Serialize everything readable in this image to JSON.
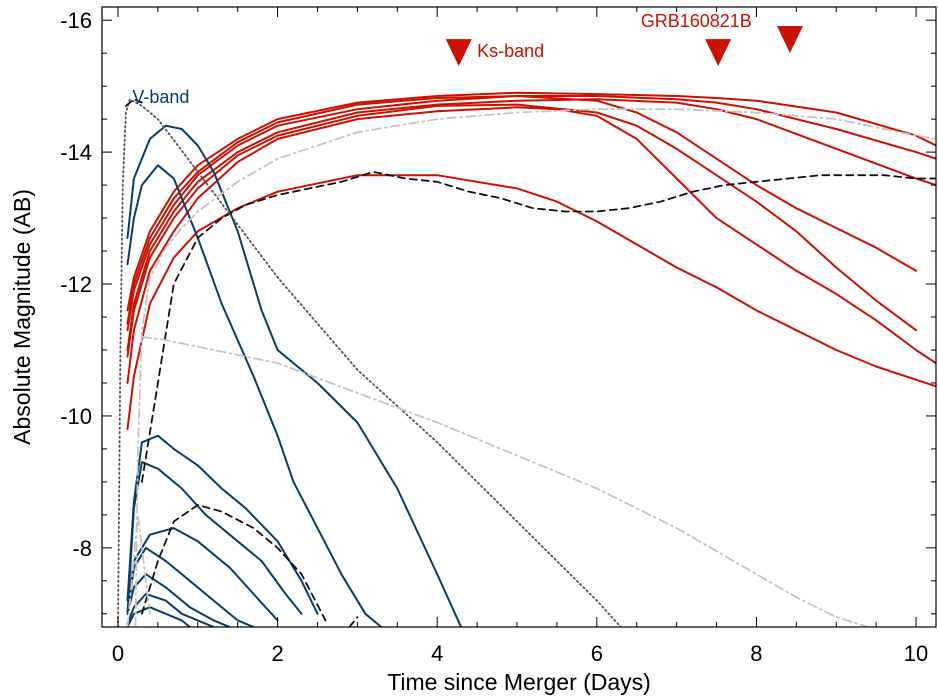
{
  "chart_data": {
    "type": "line",
    "xlabel": "Time since Merger (Days)",
    "ylabel": "Absolute Magnitude (AB)",
    "xlim": [
      -0.2,
      10.25
    ],
    "ylim": [
      -6.8,
      -16.2
    ],
    "y_axis_inverted": true,
    "xticks": [
      0,
      2,
      4,
      6,
      8,
      10
    ],
    "xtick_labels": [
      "0",
      "2",
      "4",
      "6",
      "8",
      "10"
    ],
    "yticks": [
      -16,
      -14,
      -12,
      -10,
      -8
    ],
    "ytick_labels": [
      "-16",
      "-14",
      "-12",
      "-10",
      "-8"
    ],
    "grid": false,
    "colors": {
      "ks": "#cc1100",
      "v": "#0a3d66",
      "model_dash": "#111111",
      "dotted": "#555555",
      "dashdot": "#c4c4c4"
    },
    "annotations": [
      {
        "text": "V-band",
        "x": 0.18,
        "y": -14.85,
        "color": "#0a3d66"
      },
      {
        "text": "Ks-band",
        "x": 4.5,
        "y": -15.55,
        "color": "#cc1100"
      },
      {
        "text": "GRB160821B",
        "x": 6.55,
        "y": -16.0,
        "color": "#cc1100"
      }
    ],
    "markers": [
      {
        "name": "Ks-band limit 1",
        "x": 4.27,
        "y": -15.5,
        "color": "#cc1100",
        "shape": "triangle-down"
      },
      {
        "name": "Ks-band limit 2",
        "x": 7.52,
        "y": -15.5,
        "color": "#cc1100",
        "shape": "triangle-down"
      },
      {
        "name": "Ks-band limit 3",
        "x": 8.42,
        "y": -15.7,
        "color": "#cc1100",
        "shape": "triangle-down"
      }
    ],
    "series": [
      {
        "group": "Ks-band",
        "style": "solid",
        "color": "#cc1100",
        "x": [
          0.12,
          0.2,
          0.4,
          0.7,
          1,
          1.5,
          2,
          3,
          4,
          5,
          6,
          7,
          7.5,
          8,
          9,
          10,
          10.25
        ],
        "y": [
          -11.6,
          -12.1,
          -12.8,
          -13.4,
          -13.8,
          -14.2,
          -14.5,
          -14.75,
          -14.85,
          -14.9,
          -14.88,
          -14.85,
          -14.82,
          -14.78,
          -14.6,
          -14.25,
          -14.1
        ]
      },
      {
        "group": "Ks-band",
        "style": "solid",
        "color": "#cc1100",
        "x": [
          0.12,
          0.2,
          0.4,
          0.7,
          1,
          1.5,
          2,
          3,
          4,
          5,
          6,
          7,
          7.5,
          8,
          9,
          10,
          10.25
        ],
        "y": [
          -11.3,
          -11.9,
          -12.6,
          -13.2,
          -13.65,
          -14.1,
          -14.4,
          -14.65,
          -14.78,
          -14.85,
          -14.85,
          -14.8,
          -14.75,
          -14.65,
          -14.35,
          -14.0,
          -13.9
        ]
      },
      {
        "group": "Ks-band",
        "style": "solid",
        "color": "#cc1100",
        "x": [
          0.12,
          0.2,
          0.4,
          0.7,
          1,
          1.5,
          2,
          3,
          4,
          5,
          6,
          7,
          7.5,
          8,
          9,
          10,
          10.25
        ],
        "y": [
          -11.0,
          -11.7,
          -12.5,
          -13.1,
          -13.55,
          -14.0,
          -14.3,
          -14.6,
          -14.72,
          -14.78,
          -14.8,
          -14.75,
          -14.65,
          -14.5,
          -14.05,
          -13.6,
          -13.5
        ]
      },
      {
        "group": "Ks-band",
        "style": "solid",
        "color": "#cc1100",
        "x": [
          0.12,
          0.2,
          0.4,
          0.7,
          1,
          1.5,
          2,
          3,
          4,
          5,
          6,
          6.5,
          7,
          7.5,
          8,
          8.5,
          9,
          9.5,
          10
        ],
        "y": [
          -11.4,
          -12.0,
          -12.7,
          -13.3,
          -13.7,
          -14.15,
          -14.45,
          -14.72,
          -14.82,
          -14.85,
          -14.78,
          -14.6,
          -14.3,
          -13.9,
          -13.5,
          -13.15,
          -12.85,
          -12.55,
          -12.2
        ]
      },
      {
        "group": "Ks-band",
        "style": "solid",
        "color": "#cc1100",
        "x": [
          0.12,
          0.2,
          0.4,
          0.7,
          1,
          1.5,
          2,
          3,
          4,
          5,
          6,
          6.5,
          7,
          7.5,
          8,
          8.5,
          9,
          9.5,
          10
        ],
        "y": [
          -10.9,
          -11.6,
          -12.4,
          -13.0,
          -13.45,
          -13.95,
          -14.25,
          -14.55,
          -14.7,
          -14.72,
          -14.6,
          -14.4,
          -14.05,
          -13.65,
          -13.25,
          -12.8,
          -12.25,
          -11.75,
          -11.3
        ]
      },
      {
        "group": "Ks-band",
        "style": "solid",
        "color": "#cc1100",
        "x": [
          0.12,
          0.2,
          0.4,
          0.7,
          1,
          1.5,
          2,
          3,
          4,
          5,
          5.5,
          6,
          6.5,
          7,
          7.5,
          8,
          8.5,
          9,
          9.5,
          10,
          10.25
        ],
        "y": [
          -10.5,
          -11.3,
          -12.2,
          -12.8,
          -13.3,
          -13.85,
          -14.2,
          -14.5,
          -14.62,
          -14.68,
          -14.65,
          -14.55,
          -14.2,
          -13.6,
          -13.0,
          -12.6,
          -12.2,
          -11.85,
          -11.45,
          -11.0,
          -10.8
        ]
      },
      {
        "group": "Ks-band",
        "style": "solid",
        "color": "#cc1100",
        "x": [
          0.12,
          0.2,
          0.4,
          0.7,
          1,
          1.5,
          2,
          3,
          4,
          5,
          5.5,
          6,
          6.5,
          7,
          7.5,
          8,
          8.5,
          9,
          9.5,
          10,
          10.25
        ],
        "y": [
          -9.8,
          -10.6,
          -11.7,
          -12.4,
          -12.8,
          -13.15,
          -13.4,
          -13.65,
          -13.65,
          -13.45,
          -13.25,
          -12.95,
          -12.6,
          -12.25,
          -11.95,
          -11.6,
          -11.3,
          -11.0,
          -10.75,
          -10.55,
          -10.45
        ]
      },
      {
        "group": "V-band",
        "style": "solid",
        "color": "#0a3d66",
        "x": [
          0.12,
          0.2,
          0.4,
          0.6,
          0.8,
          1,
          1.2,
          1.5,
          1.8,
          2,
          2.5,
          3,
          3.5,
          4,
          4.3
        ],
        "y": [
          -12.7,
          -13.6,
          -14.2,
          -14.4,
          -14.35,
          -14.1,
          -13.7,
          -12.8,
          -11.6,
          -11.0,
          -10.5,
          -9.9,
          -8.9,
          -7.6,
          -6.8
        ]
      },
      {
        "group": "V-band",
        "style": "solid",
        "color": "#0a3d66",
        "x": [
          0.12,
          0.2,
          0.3,
          0.5,
          0.7,
          1,
          1.3,
          1.7,
          2,
          2.2,
          2.5,
          2.8,
          3.1,
          3.3
        ],
        "y": [
          -12.3,
          -13.0,
          -13.5,
          -13.8,
          -13.6,
          -12.7,
          -11.7,
          -10.6,
          -9.7,
          -9.0,
          -8.3,
          -7.6,
          -7.0,
          -6.8
        ]
      },
      {
        "group": "V-band",
        "style": "solid",
        "color": "#0a3d66",
        "x": [
          0.12,
          0.2,
          0.3,
          0.5,
          0.7,
          1,
          1.3,
          1.6,
          2,
          2.3,
          2.5
        ],
        "y": [
          -7.2,
          -8.7,
          -9.6,
          -9.7,
          -9.5,
          -9.25,
          -8.9,
          -8.6,
          -8.1,
          -7.5,
          -7.0
        ]
      },
      {
        "group": "V-band",
        "style": "solid",
        "color": "#0a3d66",
        "x": [
          0.12,
          0.2,
          0.3,
          0.5,
          0.8,
          1.1,
          1.4,
          1.8,
          2.1,
          2.3
        ],
        "y": [
          -7.0,
          -8.6,
          -9.3,
          -9.2,
          -8.9,
          -8.5,
          -8.2,
          -7.8,
          -7.3,
          -7.0
        ]
      },
      {
        "group": "V-band",
        "style": "solid",
        "color": "#0a3d66",
        "x": [
          0.12,
          0.2,
          0.4,
          0.7,
          1,
          1.4,
          1.7,
          2.0
        ],
        "y": [
          -7.0,
          -7.8,
          -8.2,
          -8.3,
          -8.1,
          -7.7,
          -7.3,
          -6.9
        ]
      },
      {
        "group": "V-band",
        "style": "solid",
        "color": "#0a3d66",
        "x": [
          0.12,
          0.2,
          0.35,
          0.6,
          0.9,
          1.2,
          1.5,
          1.7
        ],
        "y": [
          -7.0,
          -7.7,
          -8.0,
          -7.8,
          -7.5,
          -7.2,
          -6.9,
          -6.8
        ]
      },
      {
        "group": "V-band",
        "style": "solid",
        "color": "#0a3d66",
        "x": [
          0.12,
          0.2,
          0.35,
          0.6,
          0.9,
          1.2,
          1.4
        ],
        "y": [
          -7.0,
          -7.4,
          -7.6,
          -7.4,
          -7.1,
          -6.9,
          -6.8
        ]
      },
      {
        "group": "V-band",
        "style": "solid",
        "color": "#0a3d66",
        "x": [
          0.12,
          0.2,
          0.35,
          0.6,
          0.8,
          1.0,
          1.2
        ],
        "y": [
          -6.85,
          -7.1,
          -7.3,
          -7.2,
          -7.0,
          -6.9,
          -6.8
        ]
      },
      {
        "group": "V-band",
        "style": "solid",
        "color": "#0a3d66",
        "x": [
          0.12,
          0.2,
          0.4,
          0.6,
          0.8,
          0.9
        ],
        "y": [
          -6.8,
          -7.0,
          -7.1,
          -7.0,
          -6.9,
          -6.8
        ]
      },
      {
        "group": "model",
        "style": "dashed",
        "color": "#111111",
        "x": [
          0.3,
          0.5,
          0.7,
          1.0,
          1.3,
          1.6,
          2.0,
          2.4,
          2.8,
          3.2,
          3.6,
          4.0,
          4.4,
          4.8,
          5.2,
          5.6,
          6.0,
          6.4,
          6.8,
          7.2,
          7.6,
          8.0,
          8.4,
          8.8,
          9.2,
          9.6,
          10.0,
          10.25
        ],
        "y": [
          -9.0,
          -10.5,
          -12.0,
          -12.7,
          -13.0,
          -13.2,
          -13.35,
          -13.45,
          -13.55,
          -13.7,
          -13.6,
          -13.55,
          -13.4,
          -13.3,
          -13.15,
          -13.1,
          -13.1,
          -13.15,
          -13.25,
          -13.4,
          -13.5,
          -13.55,
          -13.6,
          -13.65,
          -13.65,
          -13.65,
          -13.6,
          -13.6
        ]
      },
      {
        "group": "model",
        "style": "dashed",
        "color": "#111111",
        "x": [
          0.3,
          0.5,
          0.7,
          1.0,
          1.3,
          1.7,
          2.0,
          2.3,
          2.6
        ],
        "y": [
          -7.0,
          -7.8,
          -8.4,
          -8.65,
          -8.55,
          -8.3,
          -8.0,
          -7.6,
          -6.9
        ]
      },
      {
        "group": "model",
        "style": "dashed",
        "color": "#111111",
        "x": [
          2.9,
          3.0
        ],
        "y": [
          -6.8,
          -6.95
        ]
      },
      {
        "group": "model",
        "style": "dotted",
        "color": "#555555",
        "x": [
          0.0,
          0.03,
          0.06,
          0.1,
          0.15,
          0.3,
          0.5,
          1,
          1.5,
          2,
          3,
          4,
          5,
          6,
          6.3
        ],
        "y": [
          -6.8,
          -11.0,
          -13.5,
          -14.6,
          -14.8,
          -14.7,
          -14.5,
          -13.7,
          -12.9,
          -12.1,
          -10.7,
          -9.6,
          -8.4,
          -7.2,
          -6.8
        ]
      },
      {
        "group": "model",
        "style": "dashed",
        "color": "#111111",
        "x": [
          0.1,
          0.2,
          0.3
        ],
        "y": [
          -14.7,
          -14.8,
          -14.75
        ]
      },
      {
        "group": "model",
        "style": "dashdot",
        "color": "#c4c4c4",
        "x": [
          0.22,
          0.25,
          0.3,
          0.4,
          0.6,
          0.8,
          1.0,
          1.5,
          2,
          3,
          4,
          5,
          6,
          7,
          8,
          9,
          10,
          10.25
        ],
        "y": [
          -6.8,
          -9.5,
          -11.3,
          -12.1,
          -12.55,
          -12.85,
          -13.1,
          -13.55,
          -13.9,
          -14.3,
          -14.5,
          -14.6,
          -14.65,
          -14.65,
          -14.6,
          -14.5,
          -14.25,
          -14.2
        ]
      },
      {
        "group": "model",
        "style": "dashdot",
        "color": "#c4c4c4",
        "x": [
          0.3,
          0.6,
          1,
          2,
          3,
          4,
          5,
          6,
          7,
          7.5,
          8,
          8.5,
          9,
          9.4
        ],
        "y": [
          -11.2,
          -11.15,
          -11.05,
          -10.8,
          -10.35,
          -9.9,
          -9.4,
          -8.9,
          -8.3,
          -7.95,
          -7.6,
          -7.25,
          -6.95,
          -6.8
        ]
      },
      {
        "group": "model",
        "style": "dashdot",
        "color": "#c4c4c4",
        "x": [
          0.12,
          0.25,
          0.4
        ],
        "y": [
          -6.8,
          -8.5,
          -7.0
        ]
      }
    ]
  }
}
